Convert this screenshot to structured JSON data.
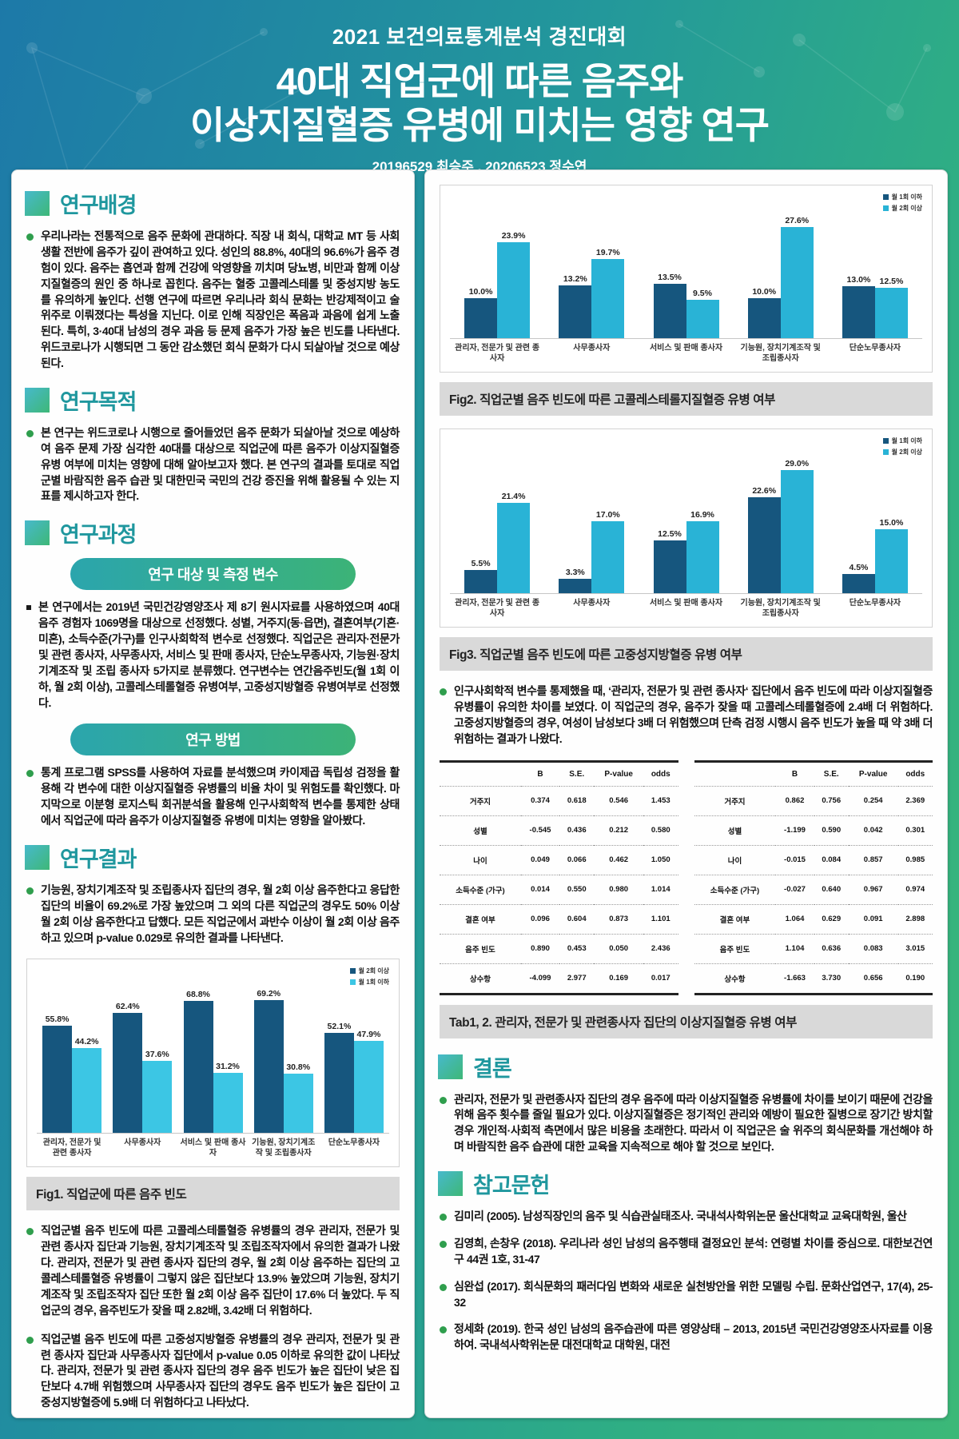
{
  "header": {
    "contest": "2021 보건의료통계분석 경진대회",
    "title_line1": "40대 직업군에 따른 음주와",
    "title_line2": "이상지질혈증 유병에 미치는 영향 연구",
    "authors": "20196529 최승주 , 20206523 정수연"
  },
  "colors": {
    "bar_dark": "#16567e",
    "bar_light_fig1": "#3cc6e4",
    "bar_light": "#29b3d6",
    "accent_teal": "#1f979e",
    "bullet_green": "#2f9e4d",
    "pill_gradient_start": "#2ba5ad",
    "pill_gradient_end": "#3cb377"
  },
  "sections": {
    "background": {
      "title": "연구배경",
      "body": "우리나라는 전통적으로 음주 문화에 관대하다. 직장 내 회식, 대학교 MT 등 사회생활 전반에 음주가 깊이 관여하고 있다. 성인의 88.8%, 40대의 96.6%가 음주 경험이 있다. 음주는 흡연과 함께 건강에 악영향을 끼치며 당뇨병, 비만과 함께 이상지질혈증의 원인 중 하나로 꼽힌다. 음주는 혈중 고콜레스테롤 및 중성지방 농도를 유의하게 높인다. 선행 연구에 따르면 우리나라 회식 문화는 반강제적이고 술 위주로 이뤄졌다는 특성을 지닌다. 이로 인해 직장인은 폭음과 과음에 쉽게 노출된다. 특히, 3·40대 남성의 경우 과음 등 문제 음주가 가장 높은 빈도를 나타낸다. 위드코로나가 시행되면 그 동안 감소했던 회식 문화가 다시 되살아날 것으로 예상된다."
    },
    "purpose": {
      "title": "연구목적",
      "body": "본 연구는 위드코로나 시행으로 줄어들었던 음주 문화가 되살아날 것으로 예상하여 음주 문제 가장 심각한 40대를 대상으로 직업군에 따른 음주가 이상지질혈증 유병 여부에 미치는 영향에 대해 알아보고자 했다. 본 연구의 결과를 토대로 직업군별 바람직한 음주 습관 및 대한민국 국민의 건강 증진을 위해 활용될 수 있는 지표를 제시하고자 한다."
    },
    "process": {
      "title": "연구과정",
      "pill1": "연구 대상 및 측정 변수",
      "pill1_body": "본 연구에서는 2019년 국민건강영양조사 제 8기 원시자료를 사용하였으며 40대 음주 경험자 1069명을 대상으로 선정했다. 성별, 거주지(동·읍면), 결혼여부(기혼·미혼), 소득수준(가구)를 인구사회학적 변수로 선정했다. 직업군은 관리자·전문가 및 관련 종사자, 사무종사자, 서비스 및 판매 종사자, 단순노무종사자, 기능원·장치기계조작 및 조립 종사자 5가지로 분류했다. 연구변수는 연간음주빈도(월 1회 이하, 월 2회 이상), 고콜레스테롤혈증 유병여부, 고중성지방혈증 유병여부로 선정했다.",
      "pill2": "연구 방법",
      "pill2_body": "통계 프로그램 SPSS를 사용하여 자료를 분석했으며 카이제곱 독립성 검정을 활용해 각 변수에 대한 이상지질혈증 유병률의 비율 차이 및 위험도를 확인했다. 마지막으로 이분형 로지스틱 회귀분석을 활용해 인구사회학적 변수를 통제한 상태에서 직업군에 따라 음주가 이상지질혈증 유병에 미치는 영향을 알아봤다."
    },
    "results": {
      "title": "연구결과",
      "body": "기능원, 장치기계조작 및 조립종사자 집단의 경우, 월 2회 이상 음주한다고 응답한 집단의 비율이 69.2%로 가장 높았으며 그 외의 다른 직업군의 경우도 50% 이상 월 2회 이상 음주한다고 답했다. 모든 직업군에서 과반수 이상이 월 2회 이상 음주하고 있으며 p-value 0.029로 유의한 결과를 나타낸다.",
      "extra1": "직업군별 음주 빈도에 따른 고콜레스테롤혈증 유병률의 경우 관리자, 전문가 및 관련 종사자 집단과 기능원, 장치기계조작 및 조립조작자에서 유의한 결과가 나왔다. 관리자, 전문가 및 관련 종사자 집단의 경우, 월 2회 이상 음주하는 집단의 고콜레스테롤혈증 유병률이 그렇지 않은 집단보다 13.9% 높았으며 기능원, 장치기계조작 및 조립조작자 집단 또한 월 2회 이상 음주 집단이 17.6% 더 높았다. 두 직업군의 경우, 음주빈도가 잦을 때 2.82배, 3.42배 더 위험하다.",
      "extra2": "직업군별 음주 빈도에 따른 고중성지방혈증 유병률의 경우 관리자, 전문가 및 관련 종사자 집단과 사무종사자 집단에서 p-value 0.05 이하로 유의한 값이 나타났다. 관리자, 전문가 및 관련 종사자 집단의 경우 음주 빈도가 높은 집단이 낮은 집단보다 4.7배 위험했으며 사무종사자 집단의 경우도 음주 빈도가 높은 집단이 고중성지방혈증에 5.9배 더 위험하다고 나타났다."
    },
    "discussion": "인구사회학적 변수를 통제했을 때, ‘관리자, 전문가 및 관련 종사자‘ 집단에서 음주 빈도에 따라 이상지질혈증 유병률이 유의한 차이를 보였다. 이 직업군의 경우, 음주가 잦을 때 고콜레스테롤혈증에 2.4배 더 위험하다. 고중성지방혈증의 경우, 여성이 남성보다 3배 더 위험했으며 단측 검정 시행시 음주 빈도가 높을 때 약 3배 더 위험하는 결과가 나왔다.",
    "conclusion": {
      "title": "결론",
      "body": "관리자, 전문가 및 관련종사자 집단의 경우 음주에 따라 이상지질혈증 유병률에 차이를 보이기 때문에 건강을 위해 음주 횟수를 줄일 필요가 있다. 이상지질혈증은 정기적인 관리와 예방이 필요한 질병으로 장기간 방치할 경우 개인적·사회적 측면에서 많은 비용을 초래한다. 따라서 이 직업군은 술 위주의 회식문화를 개선해야 하며 바람직한 음주 습관에 대한 교육을 지속적으로 해야 할 것으로 보인다."
    },
    "references": {
      "title": "참고문헌",
      "items": [
        "김미리 (2005). 남성직장인의 음주 및 식습관실태조사. 국내석사학위논문 울산대학교 교육대학원, 울산",
        "김영희, 손창우 (2018). 우리나라 성인 남성의 음주행태 결정요인 분석: 연령별 차이를 중심으로. 대한보건연구 44권 1호, 31-47",
        "심완섭 (2017). 회식문화의 패러다임 변화와 새로운 실천방안을 위한 모델링 수립. 문화산업연구, 17(4), 25-32",
        "정세화 (2019). 한국 성인 남성의 음주습관에 따른 영양상태 – 2013, 2015년 국민건강영양조사자료를 이용하여. 국내석사학위논문 대전대학교 대학원, 대전"
      ]
    }
  },
  "chart_data": [
    {
      "id": "fig1",
      "type": "bar",
      "title": "Fig1. 직업군에 따른 음주 빈도",
      "categories": [
        "관리자, 전문가 및 관련 종사자",
        "사무종사자",
        "서비스 및 판매 종사자",
        "기능원, 장치기계조작 및 조립종사자",
        "단순노무종사자"
      ],
      "series": [
        {
          "name": "월 2회 이상",
          "color": "#16567e",
          "values": [
            55.8,
            62.4,
            68.8,
            69.2,
            52.1
          ]
        },
        {
          "name": "월 1회 이하",
          "color": "#3cc6e4",
          "values": [
            44.2,
            37.6,
            31.2,
            30.8,
            47.9
          ]
        }
      ],
      "ylabel": "",
      "xlabel": "",
      "ylim": [
        0,
        78
      ],
      "grid": false,
      "legend_position": "top-right",
      "unit": "%"
    },
    {
      "id": "fig2",
      "type": "bar",
      "title": "Fig2. 직업군별 음주 빈도에 따른 고콜레스테롤지질혈증 유병 여부",
      "categories": [
        "관리자, 전문가 및 관련 종사자",
        "사무종사자",
        "서비스 및 판매 종사자",
        "기능원, 장치기계조작 및 조립종사자",
        "단순노무종사자"
      ],
      "series": [
        {
          "name": "월 1회 이하",
          "color": "#16567e",
          "values": [
            10.0,
            13.2,
            13.5,
            10.0,
            13.0
          ]
        },
        {
          "name": "월 2회 이상",
          "color": "#29b3d6",
          "values": [
            23.9,
            19.7,
            9.5,
            27.6,
            12.5
          ]
        }
      ],
      "ylabel": "",
      "xlabel": "",
      "ylim": [
        0,
        32
      ],
      "grid": false,
      "legend_position": "top-right",
      "unit": "%"
    },
    {
      "id": "fig3",
      "type": "bar",
      "title": "Fig3. 직업군별 음주 빈도에 따른 고중성지방혈증 유병 여부",
      "categories": [
        "관리자, 전문가 및 관련 종사자",
        "사무종사자",
        "서비스 및 판매 종사자",
        "기능원, 장치기계조작 및 조립종사자",
        "단순노무종사자"
      ],
      "series": [
        {
          "name": "월 1회 이하",
          "color": "#16567e",
          "values": [
            5.5,
            3.3,
            12.5,
            22.6,
            4.5
          ]
        },
        {
          "name": "월 2회 이상",
          "color": "#29b3d6",
          "values": [
            21.4,
            17.0,
            16.9,
            29.0,
            15.0
          ]
        }
      ],
      "ylabel": "",
      "xlabel": "",
      "ylim": [
        0,
        33
      ],
      "grid": false,
      "legend_position": "top-right",
      "unit": "%"
    }
  ],
  "tables": {
    "caption": "Tab1, 2. 관리자, 전문가 및 관련종사자 집단의 이상지질혈증 유병 여부",
    "headers": [
      "B",
      "S.E.",
      "P-value",
      "odds"
    ],
    "tab1_rows": [
      [
        "거주지",
        "0.374",
        "0.618",
        "0.546",
        "1.453"
      ],
      [
        "성별",
        "-0.545",
        "0.436",
        "0.212",
        "0.580"
      ],
      [
        "나이",
        "0.049",
        "0.066",
        "0.462",
        "1.050"
      ],
      [
        "소득수준 (가구)",
        "0.014",
        "0.550",
        "0.980",
        "1.014"
      ],
      [
        "결혼 여부",
        "0.096",
        "0.604",
        "0.873",
        "1.101"
      ],
      [
        "음주 빈도",
        "0.890",
        "0.453",
        "0.050",
        "2.436"
      ],
      [
        "상수항",
        "-4.099",
        "2.977",
        "0.169",
        "0.017"
      ]
    ],
    "tab2_rows": [
      [
        "거주지",
        "0.862",
        "0.756",
        "0.254",
        "2.369"
      ],
      [
        "성별",
        "-1.199",
        "0.590",
        "0.042",
        "0.301"
      ],
      [
        "나이",
        "-0.015",
        "0.084",
        "0.857",
        "0.985"
      ],
      [
        "소득수준 (가구)",
        "-0.027",
        "0.640",
        "0.967",
        "0.974"
      ],
      [
        "결혼 여부",
        "1.064",
        "0.629",
        "0.091",
        "2.898"
      ],
      [
        "음주 빈도",
        "1.104",
        "0.636",
        "0.083",
        "3.015"
      ],
      [
        "상수항",
        "-1.663",
        "3.730",
        "0.656",
        "0.190"
      ]
    ]
  }
}
